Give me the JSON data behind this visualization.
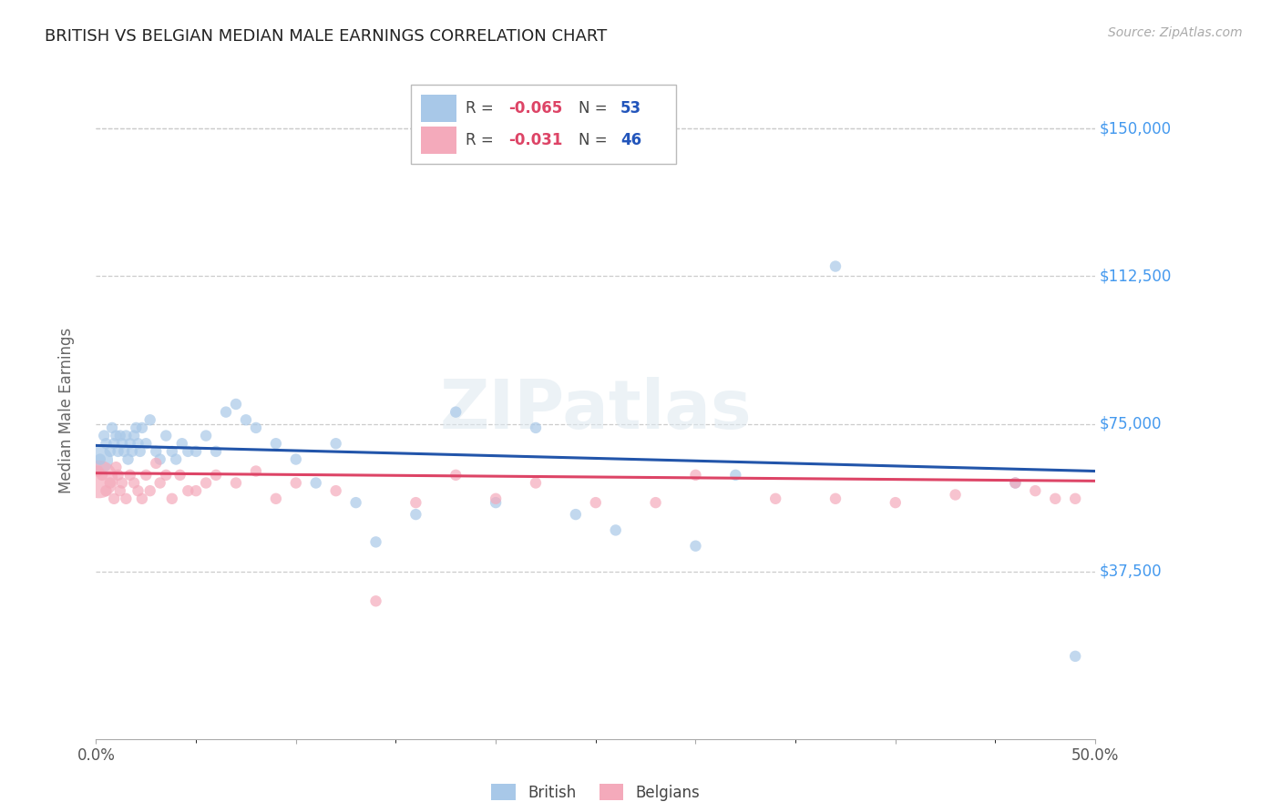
{
  "title": "BRITISH VS BELGIAN MEDIAN MALE EARNINGS CORRELATION CHART",
  "source": "Source: ZipAtlas.com",
  "ylabel": "Median Male Earnings",
  "ytick_values": [
    37500,
    75000,
    112500,
    150000
  ],
  "ytick_labels": [
    "$37,500",
    "$75,000",
    "$112,500",
    "$150,000"
  ],
  "xlim": [
    0.0,
    0.5
  ],
  "ylim": [
    -5000,
    162000
  ],
  "legend_r_british": "-0.065",
  "legend_n_british": "53",
  "legend_r_belgians": "-0.031",
  "legend_n_belgians": "46",
  "british_color": "#A8C8E8",
  "belgian_color": "#F4AABB",
  "british_line_color": "#2255AA",
  "belgian_line_color": "#DD4466",
  "grid_color": "#CCCCCC",
  "right_label_color": "#4499EE",
  "title_color": "#222222",
  "source_color": "#AAAAAA",
  "british_x": [
    0.002,
    0.004,
    0.005,
    0.007,
    0.008,
    0.009,
    0.01,
    0.011,
    0.012,
    0.013,
    0.014,
    0.015,
    0.016,
    0.017,
    0.018,
    0.019,
    0.02,
    0.021,
    0.022,
    0.023,
    0.025,
    0.027,
    0.03,
    0.032,
    0.035,
    0.038,
    0.04,
    0.043,
    0.046,
    0.05,
    0.055,
    0.06,
    0.065,
    0.07,
    0.075,
    0.08,
    0.09,
    0.1,
    0.11,
    0.12,
    0.13,
    0.14,
    0.16,
    0.18,
    0.2,
    0.22,
    0.24,
    0.26,
    0.3,
    0.32,
    0.37,
    0.46,
    0.49
  ],
  "british_y": [
    66000,
    72000,
    70000,
    68000,
    74000,
    70000,
    72000,
    68000,
    72000,
    70000,
    68000,
    72000,
    66000,
    70000,
    68000,
    72000,
    74000,
    70000,
    68000,
    74000,
    70000,
    76000,
    68000,
    66000,
    72000,
    68000,
    66000,
    70000,
    68000,
    68000,
    72000,
    68000,
    78000,
    80000,
    76000,
    74000,
    70000,
    66000,
    60000,
    70000,
    55000,
    45000,
    52000,
    78000,
    55000,
    74000,
    52000,
    48000,
    44000,
    62000,
    115000,
    60000,
    16000
  ],
  "british_size": [
    80,
    80,
    80,
    80,
    80,
    80,
    80,
    80,
    80,
    80,
    80,
    80,
    80,
    80,
    80,
    80,
    80,
    80,
    80,
    80,
    80,
    80,
    80,
    80,
    80,
    80,
    80,
    80,
    80,
    80,
    80,
    80,
    80,
    80,
    80,
    80,
    80,
    80,
    80,
    80,
    80,
    80,
    80,
    80,
    80,
    80,
    80,
    80,
    80,
    80,
    80,
    80,
    80
  ],
  "belgian_x": [
    0.001,
    0.003,
    0.005,
    0.007,
    0.009,
    0.01,
    0.011,
    0.012,
    0.013,
    0.015,
    0.017,
    0.019,
    0.021,
    0.023,
    0.025,
    0.027,
    0.03,
    0.032,
    0.035,
    0.038,
    0.042,
    0.046,
    0.05,
    0.055,
    0.06,
    0.07,
    0.08,
    0.09,
    0.1,
    0.12,
    0.14,
    0.16,
    0.18,
    0.2,
    0.22,
    0.25,
    0.28,
    0.3,
    0.34,
    0.37,
    0.4,
    0.43,
    0.46,
    0.47,
    0.48,
    0.49
  ],
  "belgian_y": [
    63000,
    62000,
    58000,
    60000,
    56000,
    64000,
    62000,
    58000,
    60000,
    56000,
    62000,
    60000,
    58000,
    56000,
    62000,
    58000,
    65000,
    60000,
    62000,
    56000,
    62000,
    58000,
    58000,
    60000,
    62000,
    60000,
    63000,
    56000,
    60000,
    58000,
    30000,
    55000,
    62000,
    56000,
    60000,
    55000,
    55000,
    62000,
    56000,
    56000,
    55000,
    57000,
    60000,
    58000,
    56000,
    56000
  ],
  "belgian_size": [
    80,
    80,
    80,
    80,
    80,
    80,
    80,
    80,
    80,
    80,
    80,
    80,
    80,
    80,
    80,
    80,
    80,
    80,
    80,
    80,
    80,
    80,
    80,
    80,
    80,
    80,
    80,
    80,
    80,
    80,
    80,
    80,
    80,
    80,
    80,
    80,
    80,
    80,
    80,
    80,
    80,
    80,
    80,
    80,
    80,
    80
  ],
  "british_large_x": [
    0.001
  ],
  "british_large_y": [
    66000
  ],
  "british_large_size": [
    500
  ],
  "belgian_large_x": [
    0.001
  ],
  "belgian_large_y": [
    61000
  ],
  "belgian_large_size": [
    900
  ],
  "british_trendline_x": [
    0.0,
    0.5
  ],
  "british_trendline_y": [
    69500,
    63000
  ],
  "belgian_trendline_x": [
    0.0,
    0.5
  ],
  "belgian_trendline_y": [
    62500,
    60500
  ]
}
